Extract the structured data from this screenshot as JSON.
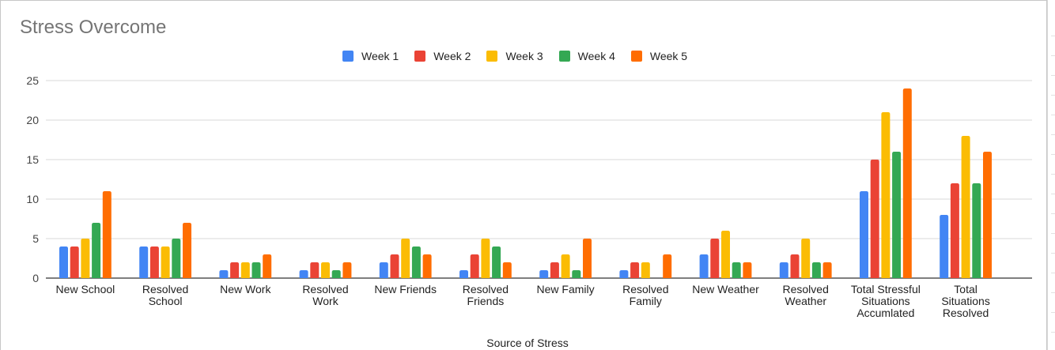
{
  "chart_data": {
    "type": "bar",
    "title": "Stress Overcome",
    "xlabel": "Source of Stress",
    "ylabel": "",
    "ylim": [
      0,
      25
    ],
    "yticks": [
      0,
      5,
      10,
      15,
      20,
      25
    ],
    "grid": true,
    "legend_position": "top",
    "categories": [
      [
        "New School"
      ],
      [
        "Resolved",
        "School"
      ],
      [
        "New Work"
      ],
      [
        "Resolved",
        "Work"
      ],
      [
        "New Friends"
      ],
      [
        "Resolved",
        "Friends"
      ],
      [
        "New Family"
      ],
      [
        "Resolved",
        "Family"
      ],
      [
        "New Weather"
      ],
      [
        "Resolved",
        "Weather"
      ],
      [
        "Total Stressful",
        "Situations",
        "Accumlated"
      ],
      [
        "Total",
        "Situations",
        "Resolved"
      ]
    ],
    "series": [
      {
        "name": "Week 1",
        "color": "#4285f4",
        "values": [
          4,
          4,
          1,
          1,
          2,
          1,
          1,
          1,
          3,
          2,
          11,
          8
        ]
      },
      {
        "name": "Week 2",
        "color": "#ea4335",
        "values": [
          4,
          4,
          2,
          2,
          3,
          3,
          2,
          2,
          5,
          3,
          15,
          12
        ]
      },
      {
        "name": "Week 3",
        "color": "#fbbc04",
        "values": [
          5,
          4,
          2,
          2,
          5,
          5,
          3,
          2,
          6,
          5,
          21,
          18
        ]
      },
      {
        "name": "Week 4",
        "color": "#34a853",
        "values": [
          7,
          5,
          2,
          1,
          4,
          4,
          1,
          0,
          2,
          2,
          16,
          12
        ]
      },
      {
        "name": "Week 5",
        "color": "#ff6d01",
        "values": [
          11,
          7,
          3,
          2,
          3,
          2,
          5,
          3,
          2,
          2,
          24,
          16
        ]
      }
    ]
  }
}
